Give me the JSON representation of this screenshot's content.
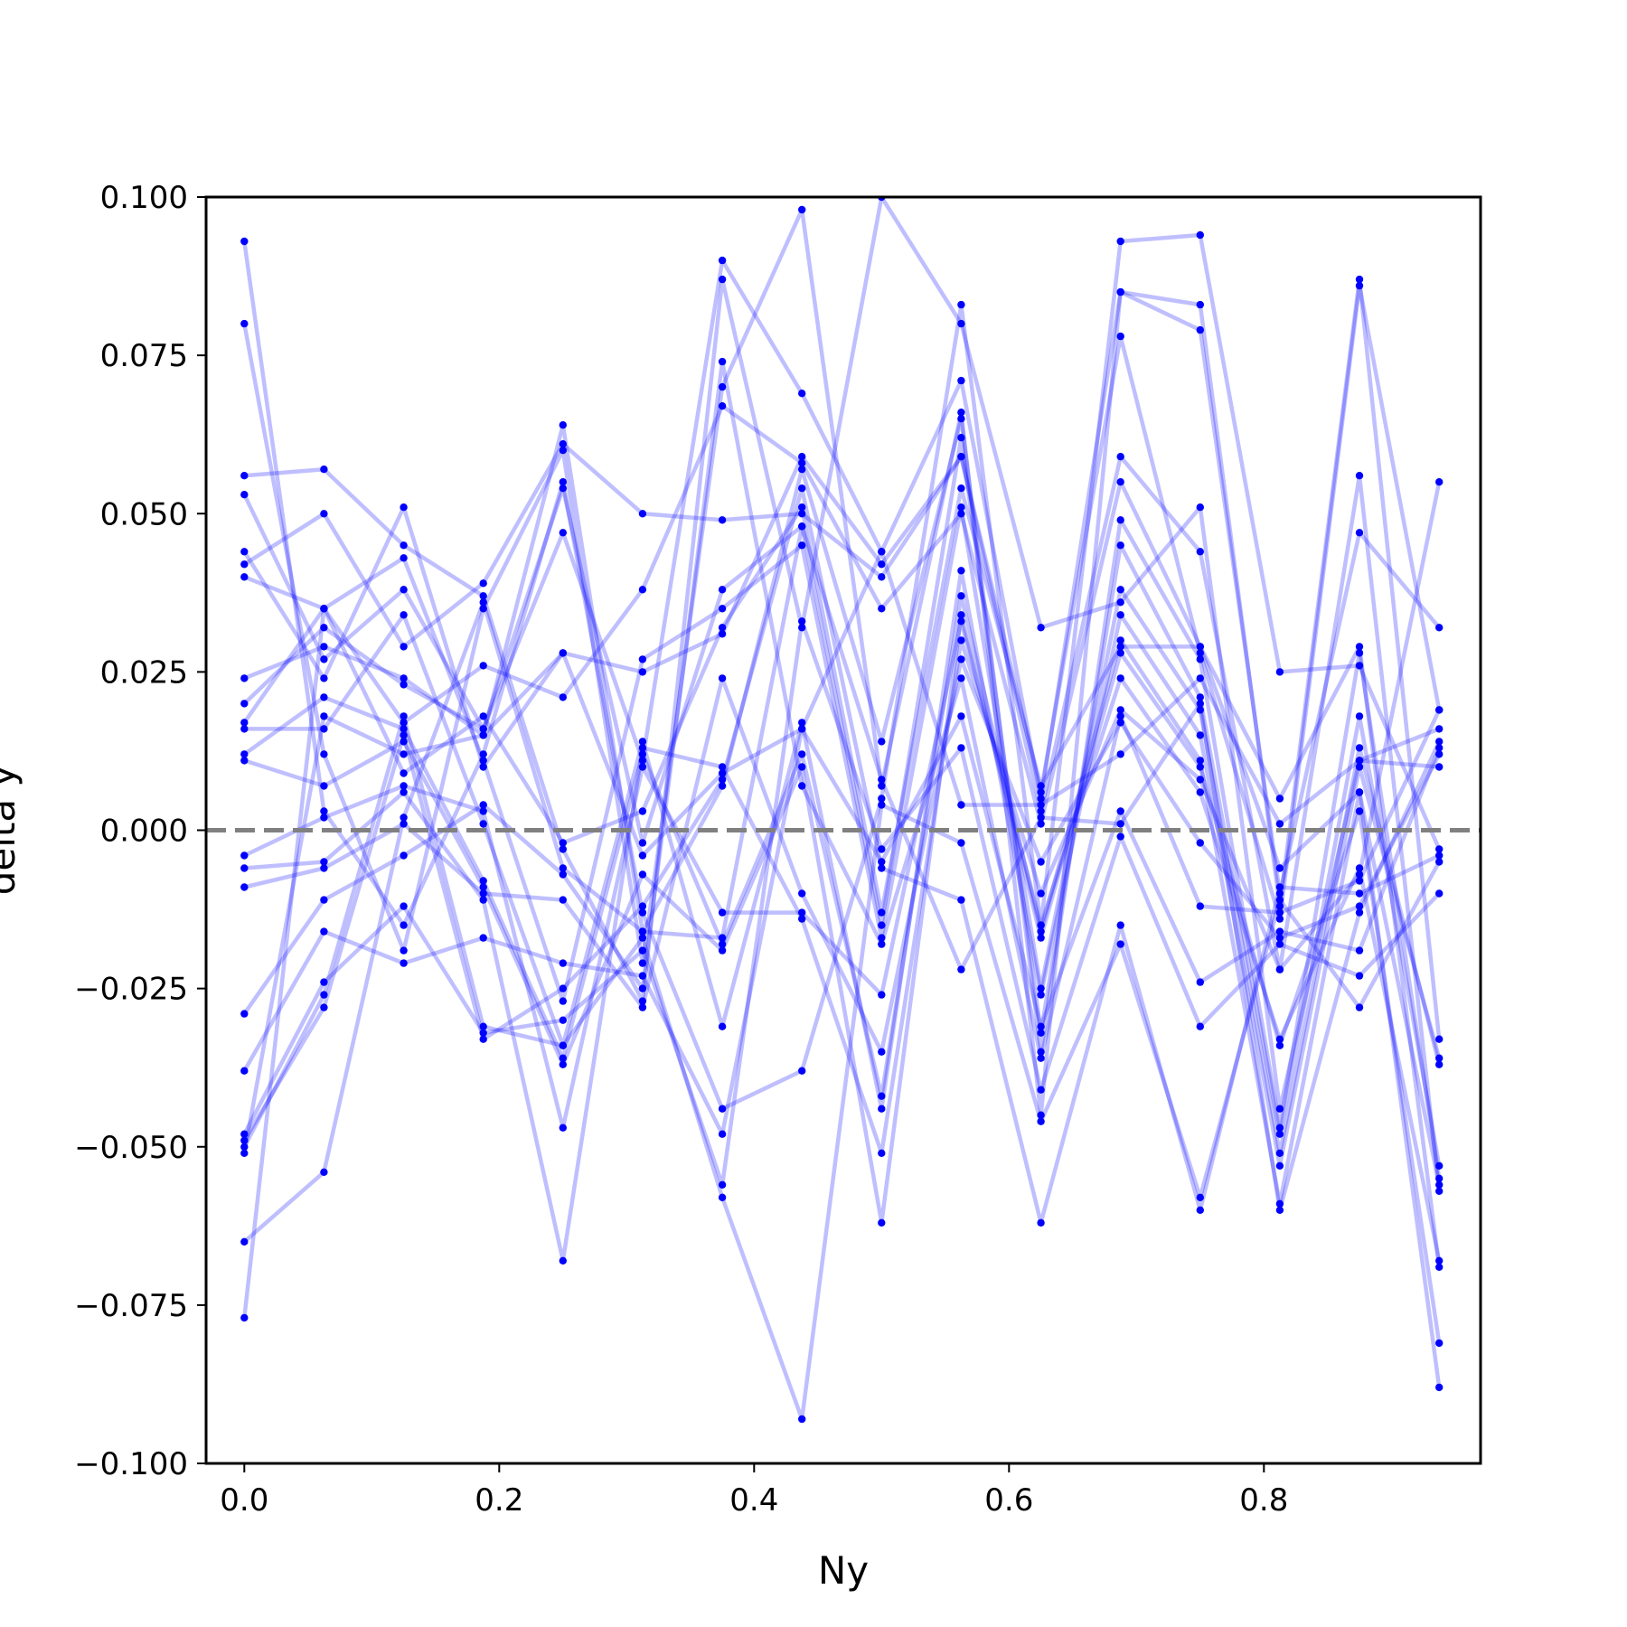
{
  "chart_data": {
    "type": "line",
    "title": "",
    "xlabel": "Ny",
    "ylabel": "delta y",
    "xlim": [
      -0.03,
      0.97
    ],
    "ylim": [
      -0.1,
      0.1
    ],
    "x_ticks": [
      0.0,
      0.2,
      0.4,
      0.6,
      0.8
    ],
    "x_tick_labels": [
      "0.0",
      "0.2",
      "0.4",
      "0.6",
      "0.8"
    ],
    "y_ticks": [
      -0.1,
      -0.075,
      -0.05,
      -0.025,
      0.0,
      0.025,
      0.05,
      0.075,
      0.1
    ],
    "y_tick_labels": [
      "−0.100",
      "−0.075",
      "−0.050",
      "−0.025",
      "0.000",
      "0.025",
      "0.050",
      "0.075",
      "0.100"
    ],
    "grid": false,
    "legend": "none",
    "reference_line": {
      "y": 0.0,
      "style": "dashed",
      "color": "#808080"
    },
    "series_style": {
      "line_color": "#0000ff",
      "line_alpha": 0.25,
      "marker_color": "#0000ff"
    },
    "x": [
      0.0,
      0.0625,
      0.125,
      0.1875,
      0.25,
      0.3125,
      0.375,
      0.4375,
      0.5,
      0.5625,
      0.625,
      0.6875,
      0.75,
      0.8125,
      0.875,
      0.9375
    ],
    "series": [
      {
        "values": [
          0.093,
          0.003,
          -0.015,
          0.012,
          0.055,
          -0.013,
          -0.044,
          -0.038,
          0.005,
          0.083,
          -0.015,
          0.093,
          0.094,
          0.025,
          0.026,
          -0.003
        ]
      },
      {
        "values": [
          0.08,
          0.012,
          -0.019,
          0.035,
          0.06,
          -0.021,
          0.07,
          0.098,
          0.007,
          0.066,
          -0.045,
          0.085,
          0.083,
          -0.012,
          0.087,
          -0.033
        ]
      },
      {
        "values": [
          0.056,
          0.057,
          0.045,
          0.037,
          -0.003,
          -0.027,
          0.087,
          0.032,
          0.1,
          0.08,
          0.032,
          0.036,
          0.051,
          -0.044,
          0.011,
          0.016
        ]
      },
      {
        "values": [
          0.053,
          0.027,
          0.038,
          0.016,
          0.047,
          0.011,
          0.09,
          0.069,
          0.044,
          0.071,
          0.005,
          0.085,
          0.079,
          -0.01,
          0.047,
          0.032
        ]
      },
      {
        "values": [
          0.044,
          0.024,
          0.051,
          0.01,
          0.028,
          0.025,
          0.031,
          0.059,
          0.042,
          0.059,
          0.006,
          0.078,
          0.028,
          -0.014,
          0.086,
          0.019
        ]
      },
      {
        "values": [
          0.042,
          0.05,
          0.029,
          0.039,
          0.061,
          0.05,
          0.049,
          0.05,
          0.04,
          0.059,
          0.003,
          0.059,
          0.044,
          -0.022,
          0.056,
          -0.057
        ]
      },
      {
        "values": [
          0.04,
          0.035,
          0.017,
          0.026,
          0.021,
          0.038,
          0.067,
          0.058,
          0.035,
          0.05,
          0.001,
          0.055,
          0.029,
          0.005,
          0.029,
          -0.069
        ]
      },
      {
        "values": [
          0.024,
          0.029,
          0.024,
          0.015,
          0.064,
          -0.016,
          0.007,
          0.057,
          0.014,
          0.065,
          -0.035,
          0.049,
          0.027,
          -0.047,
          0.028,
          -0.055
        ]
      },
      {
        "values": [
          0.02,
          0.032,
          0.023,
          0.016,
          0.054,
          -0.002,
          0.038,
          0.048,
          -0.015,
          0.062,
          -0.032,
          0.045,
          0.021,
          -0.048,
          0.018,
          -0.053
        ]
      },
      {
        "values": [
          0.017,
          0.035,
          0.043,
          0.011,
          -0.027,
          0.027,
          0.035,
          0.045,
          -0.017,
          0.051,
          -0.025,
          0.038,
          0.019,
          -0.051,
          0.013,
          -0.037
        ]
      },
      {
        "values": [
          0.016,
          0.016,
          0.034,
          0.001,
          -0.034,
          0.014,
          -0.031,
          0.017,
          -0.044,
          0.041,
          -0.026,
          0.034,
          0.015,
          -0.053,
          0.01,
          -0.036
        ]
      },
      {
        "values": [
          0.012,
          0.021,
          0.016,
          -0.008,
          -0.036,
          0.012,
          -0.018,
          0.012,
          -0.042,
          0.037,
          -0.016,
          0.03,
          0.011,
          -0.059,
          0.006,
          -0.088
        ]
      },
      {
        "values": [
          0.011,
          0.007,
          0.014,
          -0.009,
          -0.037,
          -0.007,
          -0.019,
          0.01,
          -0.062,
          0.034,
          -0.017,
          0.028,
          0.01,
          -0.034,
          0.003,
          -0.081
        ]
      },
      {
        "values": [
          -0.004,
          0.002,
          0.007,
          0.003,
          -0.047,
          0.01,
          -0.013,
          -0.013,
          -0.026,
          0.033,
          -0.015,
          0.024,
          0.006,
          -0.033,
          -0.006,
          -0.068
        ]
      },
      {
        "values": [
          -0.006,
          -0.005,
          0.006,
          -0.011,
          -0.068,
          0.013,
          0.01,
          -0.014,
          -0.051,
          0.03,
          -0.01,
          0.019,
          0.008,
          -0.022,
          -0.007,
          0.055
        ]
      },
      {
        "values": [
          -0.009,
          -0.006,
          0.001,
          -0.01,
          -0.011,
          -0.028,
          0.024,
          -0.01,
          -0.035,
          0.027,
          -0.005,
          0.017,
          -0.002,
          -0.017,
          -0.012,
          0.012
        ]
      },
      {
        "values": [
          -0.029,
          -0.011,
          -0.004,
          0.004,
          -0.007,
          -0.025,
          0.074,
          0.007,
          -0.018,
          0.024,
          -0.036,
          0.018,
          -0.012,
          -0.013,
          -0.008,
          0.019
        ]
      },
      {
        "values": [
          -0.038,
          -0.016,
          -0.021,
          -0.017,
          -0.021,
          -0.023,
          -0.048,
          0.016,
          -0.005,
          0.018,
          -0.031,
          0.003,
          -0.024,
          -0.016,
          -0.019,
          0.013
        ]
      },
      {
        "values": [
          -0.048,
          -0.024,
          -0.012,
          -0.032,
          -0.03,
          -0.019,
          -0.056,
          0.033,
          -0.003,
          0.013,
          -0.041,
          -0.001,
          -0.031,
          -0.018,
          -0.023,
          -0.01
        ]
      },
      {
        "values": [
          -0.05,
          -0.026,
          0.018,
          -0.031,
          -0.034,
          -0.017,
          -0.058,
          -0.093,
          0.004,
          -0.002,
          -0.046,
          -0.018,
          -0.058,
          -0.011,
          -0.028,
          -0.005
        ]
      },
      {
        "values": [
          -0.049,
          -0.028,
          0.015,
          -0.033,
          -0.025,
          -0.012,
          0.008,
          0.054,
          -0.006,
          -0.011,
          -0.062,
          -0.015,
          -0.06,
          -0.009,
          -0.01,
          -0.004
        ]
      },
      {
        "values": [
          -0.051,
          0.018,
          0.012,
          0.015,
          0.028,
          -0.004,
          0.009,
          0.016,
          0.044,
          0.004,
          0.004,
          0.012,
          0.024,
          0.001,
          0.011,
          0.01
        ]
      },
      {
        "values": [
          -0.065,
          -0.054,
          0.002,
          0.036,
          -0.006,
          -0.016,
          -0.017,
          0.048,
          0.008,
          -0.022,
          0.002,
          0.001,
          0.02,
          -0.06,
          -0.013,
          0.014
        ]
      },
      {
        "values": [
          -0.077,
          0.035,
          0.009,
          0.018,
          -0.002,
          0.003,
          0.032,
          0.051,
          -0.013,
          0.054,
          0.007,
          0.029,
          0.029,
          -0.006,
          0.006,
          -0.056
        ]
      }
    ]
  }
}
